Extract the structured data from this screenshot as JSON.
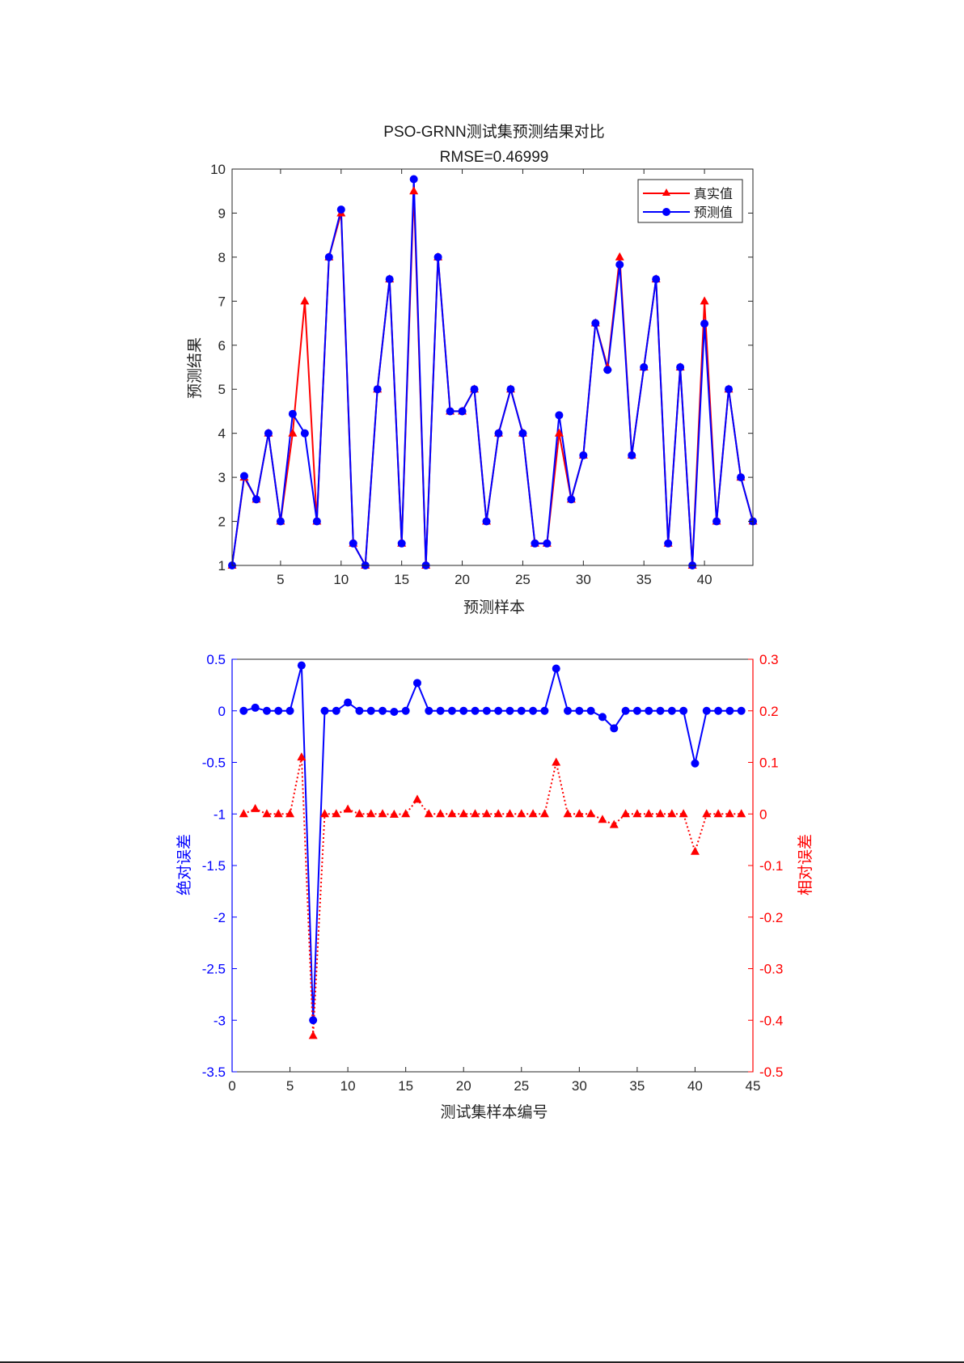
{
  "chart_data": [
    {
      "type": "line",
      "title": "PSO-GRNN测试集预测结果对比",
      "subtitle": "RMSE=0.46999",
      "xlabel": "预测样本",
      "ylabel": "预测结果",
      "xlim": [
        1,
        44
      ],
      "ylim": [
        1,
        10
      ],
      "xticks": [
        5,
        10,
        15,
        20,
        25,
        30,
        35,
        40
      ],
      "yticks": [
        1,
        2,
        3,
        4,
        5,
        6,
        7,
        8,
        9,
        10
      ],
      "legend_position": "top-right",
      "x": [
        1,
        2,
        3,
        4,
        5,
        6,
        7,
        8,
        9,
        10,
        11,
        12,
        13,
        14,
        15,
        16,
        17,
        18,
        19,
        20,
        21,
        22,
        23,
        24,
        25,
        26,
        27,
        28,
        29,
        30,
        31,
        32,
        33,
        34,
        35,
        36,
        37,
        38,
        39,
        40,
        41,
        42,
        43,
        44
      ],
      "series": [
        {
          "name": "真实值",
          "color": "#ff0000",
          "marker": "triangle",
          "values": [
            1,
            3,
            2.5,
            4,
            2,
            4,
            7,
            2,
            8,
            9,
            1.5,
            1,
            5,
            7.5,
            1.5,
            9.5,
            1,
            8,
            4.5,
            4.5,
            5,
            2,
            4,
            5,
            4,
            1.5,
            1.5,
            4,
            2.5,
            3.5,
            6.5,
            5.5,
            8,
            3.5,
            5.5,
            7.5,
            1.5,
            5.5,
            1,
            7,
            2,
            5,
            3,
            2
          ]
        },
        {
          "name": "预测值",
          "color": "#0000ff",
          "marker": "circle",
          "values": [
            1,
            3.03,
            2.5,
            4,
            2,
            4.44,
            4,
            2,
            8,
            9.08,
            1.5,
            1,
            5,
            7.5,
            1.5,
            9.77,
            1,
            8,
            4.5,
            4.5,
            5,
            2,
            4,
            5,
            4,
            1.5,
            1.5,
            4.41,
            2.5,
            3.5,
            6.5,
            5.44,
            7.83,
            3.5,
            5.5,
            7.5,
            1.5,
            5.5,
            1,
            6.49,
            2,
            5,
            3,
            2
          ]
        }
      ]
    },
    {
      "type": "line",
      "title": "",
      "xlabel": "测试集样本编号",
      "ylabel": "绝对误差",
      "y2label": "相对误差",
      "xlim": [
        0,
        45
      ],
      "ylim": [
        -3.5,
        0.5
      ],
      "y2lim": [
        -0.5,
        0.3
      ],
      "xticks": [
        0,
        5,
        10,
        15,
        20,
        25,
        30,
        35,
        40,
        45
      ],
      "yticks": [
        0.5,
        0,
        -0.5,
        -1,
        -1.5,
        -2,
        -2.5,
        -3,
        -3.5
      ],
      "y2ticks": [
        0.3,
        0.2,
        0.1,
        0,
        -0.1,
        -0.2,
        -0.3,
        -0.4,
        -0.5
      ],
      "x": [
        1,
        2,
        3,
        4,
        5,
        6,
        7,
        8,
        9,
        10,
        11,
        12,
        13,
        14,
        15,
        16,
        17,
        18,
        19,
        20,
        21,
        22,
        23,
        24,
        25,
        26,
        27,
        28,
        29,
        30,
        31,
        32,
        33,
        34,
        35,
        36,
        37,
        38,
        39,
        40,
        41,
        42,
        43,
        44
      ],
      "series": [
        {
          "axis": "left",
          "color": "#0000ff",
          "marker": "circle",
          "line": "solid",
          "values": [
            0,
            0.03,
            0,
            0,
            0,
            0.44,
            -3,
            0,
            0,
            0.08,
            0,
            0,
            0,
            -0.01,
            0,
            0.27,
            0,
            0,
            0,
            0,
            0,
            0,
            0,
            0,
            0,
            0,
            0,
            0.41,
            0,
            0,
            0,
            -0.06,
            -0.17,
            0,
            0,
            0,
            0,
            0,
            0,
            -0.51,
            0,
            0,
            0,
            0
          ]
        },
        {
          "axis": "right",
          "color": "#ff0000",
          "marker": "triangle",
          "line": "dotted",
          "values": [
            0,
            0.01,
            0,
            0,
            0,
            0.11,
            -0.43,
            0,
            0,
            0.009,
            0,
            0,
            0,
            -0.001,
            0,
            0.028,
            0,
            0,
            0,
            0,
            0,
            0,
            0,
            0,
            0,
            0,
            0,
            0.1,
            0,
            0,
            0,
            -0.011,
            -0.021,
            0,
            0,
            0,
            0,
            0,
            0,
            -0.073,
            0,
            0,
            0,
            0
          ]
        }
      ]
    }
  ]
}
